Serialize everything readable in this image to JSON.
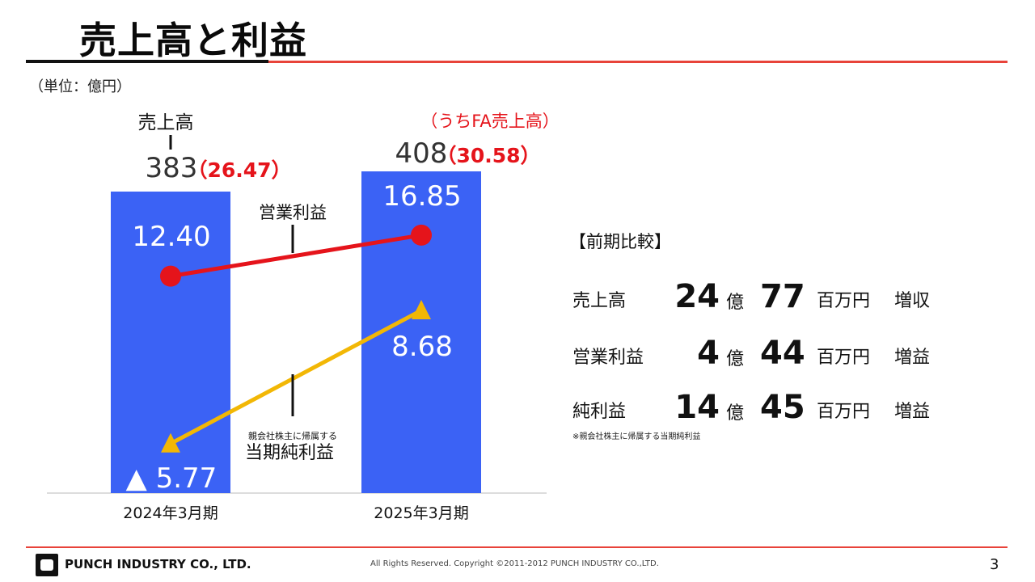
{
  "header": {
    "title": "売上高と利益",
    "unit": "（単位：億円）"
  },
  "chart_data": {
    "type": "bar",
    "categories": [
      "2024年3月期",
      "2025年3月期"
    ],
    "ylim": [
      0,
      450
    ],
    "series": [
      {
        "name": "売上高",
        "type": "bar",
        "values": [
          383,
          408
        ],
        "labels": [
          "383",
          "408"
        ],
        "color": "#3b62f5"
      },
      {
        "name": "営業利益",
        "type": "line",
        "values": [
          12.4,
          16.85
        ],
        "labels": [
          "12.40",
          "16.85"
        ],
        "color": "#e5141b"
      },
      {
        "name": "当期純利益",
        "type": "line",
        "values": [
          -5.77,
          8.68
        ],
        "labels": [
          "▲ 5.77",
          "8.68"
        ],
        "color": "#f2b705"
      }
    ],
    "fa_sales": {
      "label": "（うちFA売上高）",
      "values": [
        "（26.47）",
        "（30.58）"
      ]
    },
    "annotations": {
      "sales_label": "売上高",
      "operating_label": "営業利益",
      "net_label_small": "親会社株主に帰属する",
      "net_label": "当期純利益"
    }
  },
  "comparison": {
    "heading": "【前期比較】",
    "rows": [
      {
        "label": "売上高",
        "oku": "24",
        "oku_unit": "億",
        "man": "77",
        "unit": "百万円",
        "result": "増収"
      },
      {
        "label": "営業利益",
        "oku": "4",
        "oku_unit": "億",
        "man": "44",
        "unit": "百万円",
        "result": "増益"
      },
      {
        "label": "純利益",
        "oku": "14",
        "oku_unit": "億",
        "man": "45",
        "unit": "百万円",
        "result": "増益"
      }
    ],
    "note": "※親会社株主に帰属する当期純利益"
  },
  "footer": {
    "company": "PUNCH INDUSTRY CO., LTD.",
    "copyright": "All Rights Reserved. Copyright ©2011-2012  PUNCH  INDUSTRY  CO.,LTD.",
    "page": "3"
  }
}
